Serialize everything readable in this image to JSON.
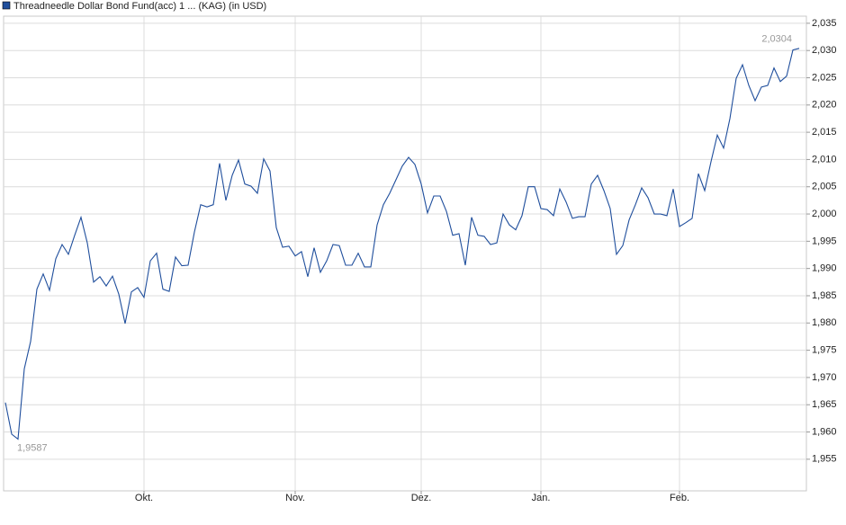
{
  "chart_data": {
    "type": "line",
    "categories": [
      null,
      null,
      null,
      null,
      null,
      null,
      null,
      null,
      null,
      null,
      null,
      null,
      null,
      null,
      null,
      null,
      null,
      null,
      null,
      null,
      null,
      null,
      "Okt.",
      null,
      null,
      null,
      null,
      null,
      null,
      null,
      null,
      null,
      null,
      null,
      null,
      null,
      null,
      null,
      null,
      null,
      null,
      null,
      null,
      null,
      null,
      null,
      "Nov.",
      null,
      null,
      null,
      null,
      null,
      null,
      null,
      null,
      null,
      null,
      null,
      null,
      null,
      null,
      null,
      null,
      null,
      null,
      null,
      "Dez.",
      null,
      null,
      null,
      null,
      null,
      null,
      null,
      null,
      null,
      null,
      null,
      null,
      null,
      null,
      null,
      null,
      null,
      null,
      "Jan.",
      null,
      null,
      null,
      null,
      null,
      null,
      null,
      null,
      null,
      null,
      null,
      null,
      null,
      null,
      null,
      null,
      null,
      null,
      null,
      null,
      null,
      "Feb.",
      null,
      null,
      null,
      null,
      null,
      null,
      null,
      null,
      null,
      null,
      null,
      null,
      null,
      null,
      null,
      null,
      null,
      null,
      null
    ],
    "series": [
      {
        "name": "Threadneedle Dollar Bond Fund(acc) 1 ... (KAG) (in USD)",
        "color": "#1f4e9c",
        "values": [
          1.9654,
          1.9596,
          1.9587,
          1.9716,
          1.9766,
          1.9862,
          1.989,
          1.986,
          1.9918,
          1.9944,
          1.9926,
          1.9961,
          1.9994,
          1.9947,
          1.9875,
          1.9885,
          1.9868,
          1.9886,
          1.9853,
          1.9799,
          1.9857,
          1.9865,
          1.9847,
          1.9914,
          1.9928,
          1.9862,
          1.9858,
          1.9921,
          1.9905,
          1.9906,
          1.9967,
          2.0017,
          2.0013,
          2.0017,
          2.0093,
          2.0025,
          2.0071,
          2.0099,
          2.0055,
          2.0051,
          2.0038,
          2.0101,
          2.0079,
          1.9975,
          1.9939,
          1.9941,
          1.9923,
          1.9931,
          1.9885,
          1.9938,
          1.9893,
          1.9914,
          1.9944,
          1.9942,
          1.9906,
          1.9906,
          1.9928,
          1.9903,
          1.9903,
          1.998,
          2.0017,
          2.0038,
          2.0063,
          2.0088,
          2.0104,
          2.0091,
          2.0055,
          2.0002,
          2.0033,
          2.0033,
          2.0005,
          1.9961,
          1.9964,
          1.9906,
          1.9994,
          1.9961,
          1.9959,
          1.9944,
          1.9947,
          2.0,
          1.998,
          1.9971,
          1.9997,
          2.005,
          2.005,
          2.001,
          2.0008,
          1.9997,
          2.0046,
          2.0022,
          1.9992,
          1.9995,
          1.9995,
          2.0055,
          2.0071,
          2.0043,
          2.001,
          1.9926,
          1.9942,
          1.9989,
          2.0017,
          2.0048,
          2.003,
          2.0,
          2.0,
          1.9997,
          2.0046,
          1.9977,
          1.9984,
          1.9992,
          2.0074,
          2.0043,
          2.0096,
          2.0145,
          2.0121,
          2.0175,
          2.0249,
          2.0274,
          2.0236,
          2.0208,
          2.0233,
          2.0236,
          2.0268,
          2.0243,
          2.0253,
          2.0301,
          2.0304
        ],
        "value_labels": [
          null,
          null,
          "1,9587",
          null,
          null,
          null,
          null,
          null,
          null,
          null,
          null,
          null,
          null,
          null,
          null,
          null,
          null,
          null,
          null,
          null,
          null,
          null,
          null,
          null,
          null,
          null,
          null,
          null,
          null,
          null,
          null,
          null,
          null,
          null,
          null,
          null,
          null,
          null,
          null,
          null,
          null,
          null,
          null,
          null,
          null,
          null,
          null,
          null,
          null,
          null,
          null,
          null,
          null,
          null,
          null,
          null,
          null,
          null,
          null,
          null,
          null,
          null,
          null,
          null,
          null,
          null,
          null,
          null,
          null,
          null,
          null,
          null,
          null,
          null,
          null,
          null,
          null,
          null,
          null,
          null,
          null,
          null,
          null,
          null,
          null,
          null,
          null,
          null,
          null,
          null,
          null,
          null,
          null,
          null,
          null,
          null,
          null,
          null,
          null,
          null,
          null,
          null,
          null,
          null,
          null,
          null,
          null,
          null,
          null,
          null,
          null,
          null,
          null,
          null,
          null,
          null,
          null,
          null,
          null,
          null,
          null,
          null,
          null,
          null,
          null,
          null,
          "2,0304"
        ]
      }
    ],
    "ylim": [
      1.9492,
      2.0363
    ],
    "yticks": [
      {
        "value": 1.955,
        "label": "1,955"
      },
      {
        "value": 1.96,
        "label": "1,960"
      },
      {
        "value": 1.965,
        "label": "1,965"
      },
      {
        "value": 1.97,
        "label": "1,970"
      },
      {
        "value": 1.975,
        "label": "1,975"
      },
      {
        "value": 1.98,
        "label": "1,980"
      },
      {
        "value": 1.985,
        "label": "1,985"
      },
      {
        "value": 1.99,
        "label": "1,990"
      },
      {
        "value": 1.995,
        "label": "1,995"
      },
      {
        "value": 2.0,
        "label": "2,000"
      },
      {
        "value": 2.005,
        "label": "2,005"
      },
      {
        "value": 2.01,
        "label": "2,010"
      },
      {
        "value": 2.015,
        "label": "2,015"
      },
      {
        "value": 2.02,
        "label": "2,020"
      },
      {
        "value": 2.025,
        "label": "2,025"
      },
      {
        "value": 2.03,
        "label": "2,030"
      },
      {
        "value": 2.035,
        "label": "2,035"
      }
    ],
    "grid": true
  }
}
